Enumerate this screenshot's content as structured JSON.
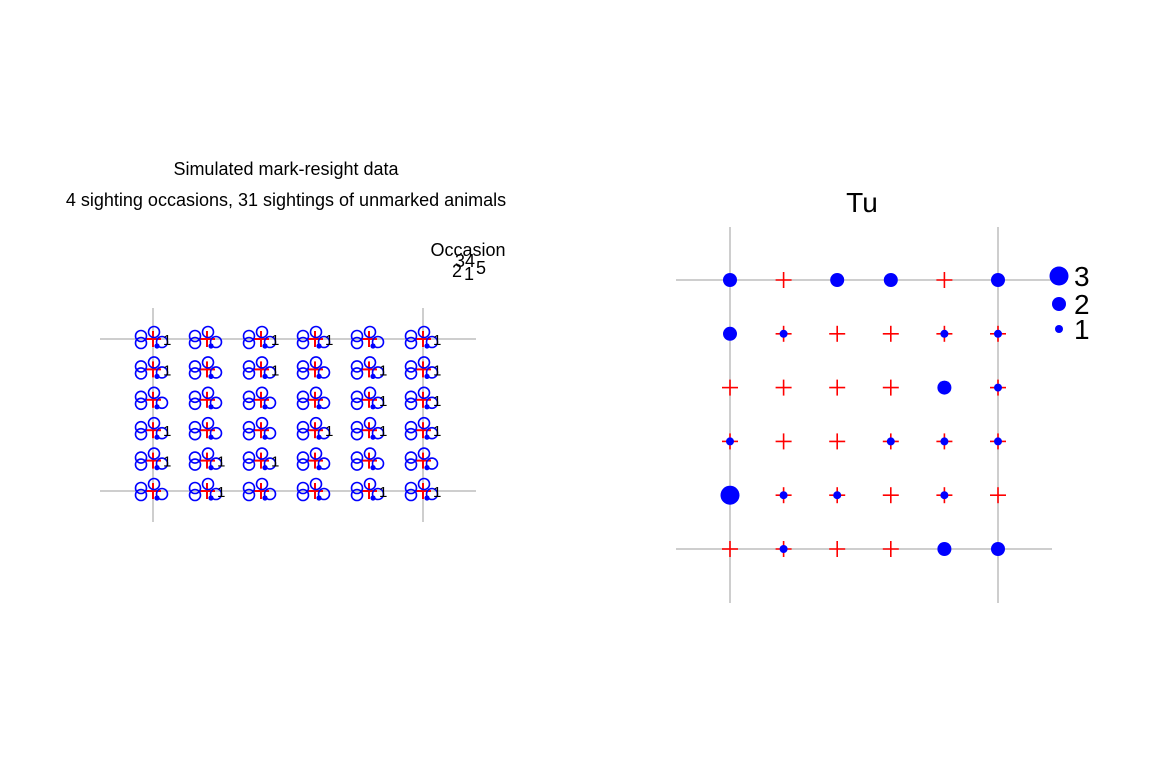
{
  "left_panel": {
    "title_line1": "Simulated mark-resight data",
    "title_line2": "4 sighting occasions, 31 sightings of unmarked animals",
    "legend_title": "Occasion",
    "legend_row1": "34",
    "legend_row2": "2",
    "legend_row2b": "1",
    "legend_row2c": "5"
  },
  "right_panel": {
    "title": "Tu",
    "legend": [
      "3",
      "2",
      "1"
    ]
  },
  "colors": {
    "grid": "#bebebe",
    "trap": "#ff0000",
    "sighting": "#0000ff",
    "text": "#000000"
  },
  "chart_data": [
    {
      "type": "scatter",
      "title": "Simulated mark-resight data",
      "subtitle": "4 sighting occasions, 31 sightings of unmarked animals",
      "description": "6x6 trap grid; each trap shows captures/sightings per occasion",
      "legend_title": "Occasion",
      "grid_cols": 6,
      "grid_rows": 6,
      "label_pattern": [
        [
          "1",
          "",
          "1",
          "1",
          "",
          "1"
        ],
        [
          "1",
          "",
          "1",
          "",
          "1",
          "1"
        ],
        [
          "",
          "",
          "",
          "",
          "1",
          "1"
        ],
        [
          "1",
          "",
          "",
          "1",
          "1",
          "1"
        ],
        [
          "1",
          "1",
          "1",
          "",
          "",
          ""
        ],
        [
          "",
          "1",
          "",
          "",
          "1",
          "1"
        ]
      ]
    },
    {
      "type": "scatter",
      "title": "Tu",
      "description": "Count of unmarked sightings per trap (symbol size), red cross = trap with zero",
      "grid_cols": 6,
      "grid_rows": 6,
      "counts": [
        [
          2,
          0,
          2,
          2,
          0,
          2
        ],
        [
          2,
          1,
          0,
          0,
          1,
          1
        ],
        [
          0,
          0,
          0,
          0,
          2,
          1
        ],
        [
          1,
          0,
          0,
          1,
          1,
          1
        ],
        [
          3,
          1,
          1,
          0,
          1,
          0
        ],
        [
          0,
          1,
          0,
          0,
          2,
          2
        ]
      ],
      "legend_values": [
        3,
        2,
        1
      ]
    }
  ]
}
